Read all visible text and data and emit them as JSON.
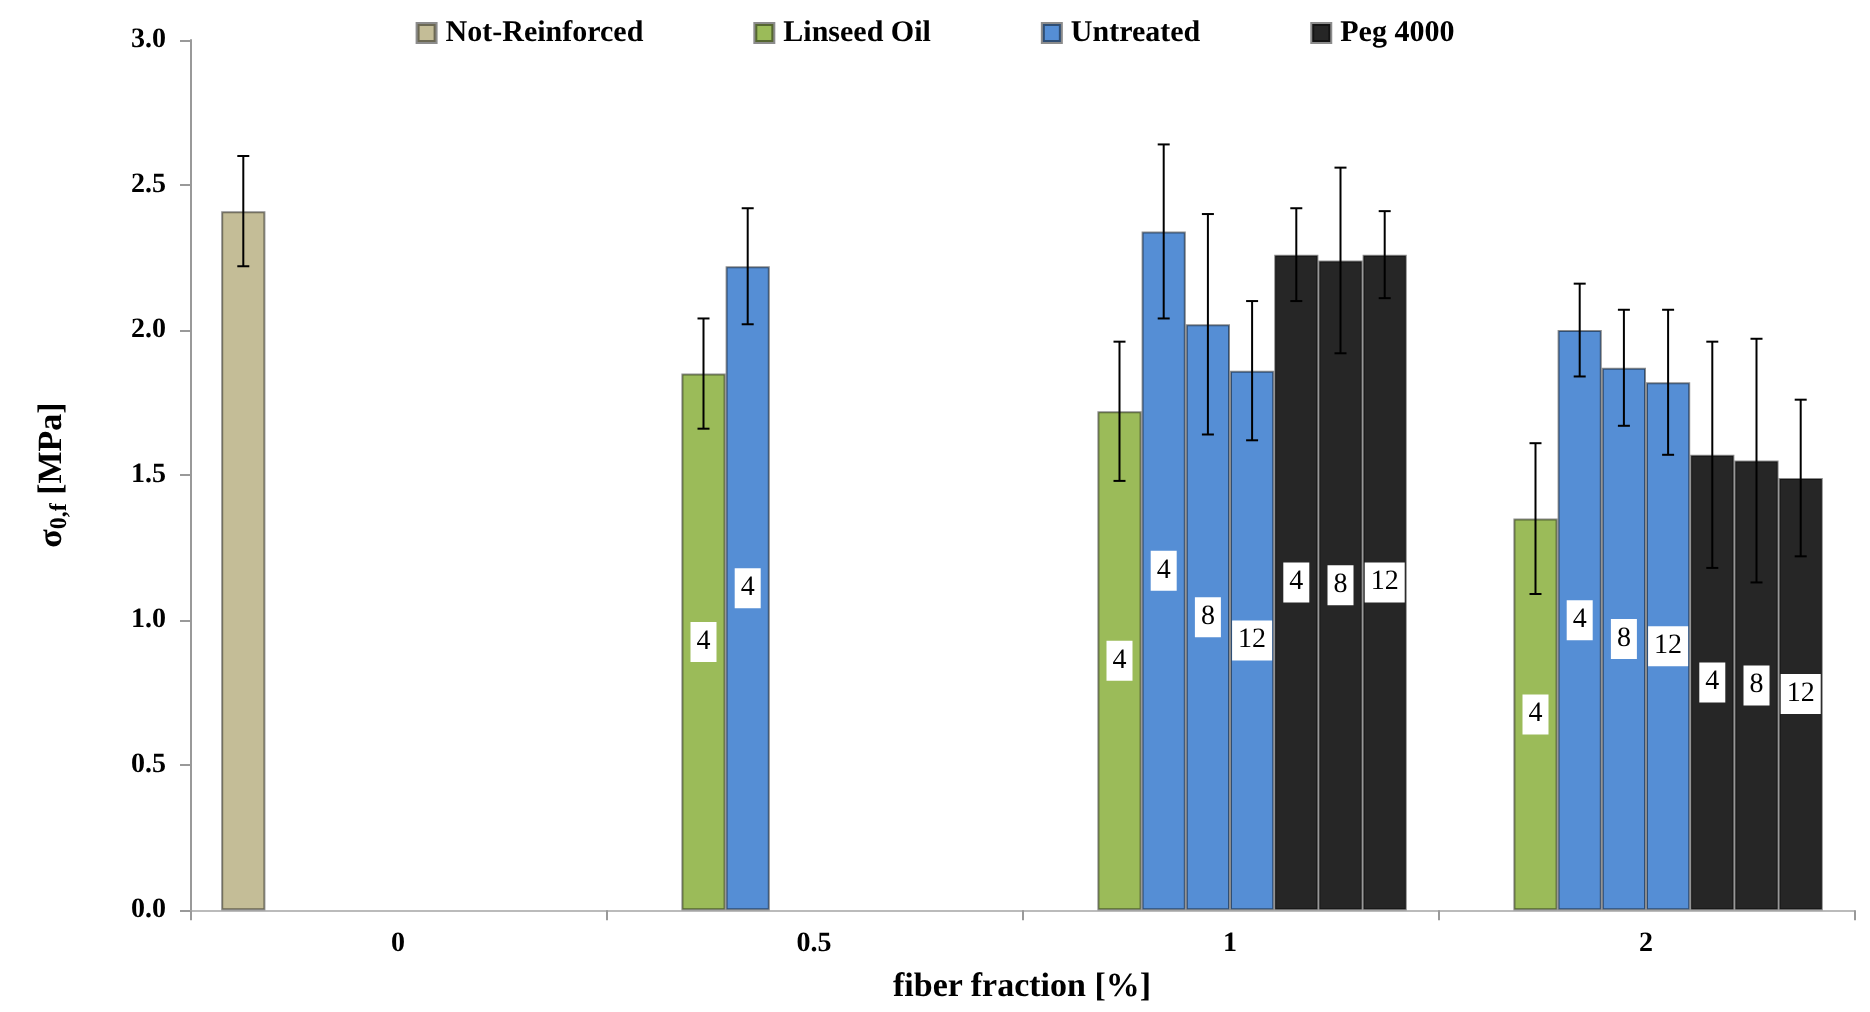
{
  "chart_data": {
    "type": "bar",
    "xlabel": "fiber fraction [%]",
    "ylabel": "σ$_{0,f}$ [MPa]",
    "categories": [
      "0",
      "0.5",
      "1",
      "2"
    ],
    "series": [
      {
        "name": "Not-Reinforced",
        "color": "#c4bd97",
        "values": [
          2.41,
          null,
          null,
          null
        ],
        "errors": [
          0.19,
          null,
          null,
          null
        ]
      },
      {
        "name": "Linseed Oil",
        "color": "#9bbb59",
        "values": [
          null,
          1.85,
          1.72,
          1.35
        ],
        "errors": [
          null,
          0.19,
          0.24,
          0.26
        ]
      },
      {
        "name": "Untreated",
        "color": "#558ed5",
        "values": [
          null,
          2.22,
          2.34,
          2.0
        ],
        "errors": [
          null,
          0.2,
          0.3,
          0.16
        ]
      },
      {
        "color": "#558ed5",
        "values": [
          null,
          null,
          2.02,
          1.87
        ],
        "errors": [
          null,
          null,
          0.38,
          0.2
        ]
      },
      {
        "color": "#558ed5",
        "values": [
          null,
          null,
          1.86,
          1.82
        ],
        "errors": [
          null,
          null,
          0.24,
          0.25
        ]
      },
      {
        "name": "Peg 4000",
        "color": "#262626",
        "values": [
          null,
          null,
          2.26,
          1.57
        ],
        "errors": [
          null,
          null,
          0.16,
          0.39
        ]
      },
      {
        "color": "#262626",
        "values": [
          null,
          null,
          2.24,
          1.55
        ],
        "errors": [
          null,
          null,
          0.32,
          0.42
        ]
      },
      {
        "color": "#262626",
        "values": [
          null,
          null,
          2.26,
          1.49
        ],
        "errors": [
          null,
          null,
          0.15,
          0.27
        ]
      }
    ],
    "annotations": [
      "4",
      "4",
      "4",
      "4",
      "8",
      "12",
      "4",
      "8",
      "12",
      "4",
      "4",
      "8",
      "12",
      "4",
      "8",
      "12"
    ],
    "ylim": [
      0,
      3
    ],
    "yticks": [
      {
        "value": 0,
        "label": "0.0"
      },
      {
        "value": 0.5,
        "label": "0.5"
      },
      {
        "value": 1,
        "label": "1.0"
      },
      {
        "value": 1.5,
        "label": "1.5"
      },
      {
        "value": 2,
        "label": "2.0"
      },
      {
        "value": 2.5,
        "label": "2.5"
      },
      {
        "value": 3,
        "label": "3.0"
      }
    ],
    "grid": false,
    "legend": "top"
  }
}
